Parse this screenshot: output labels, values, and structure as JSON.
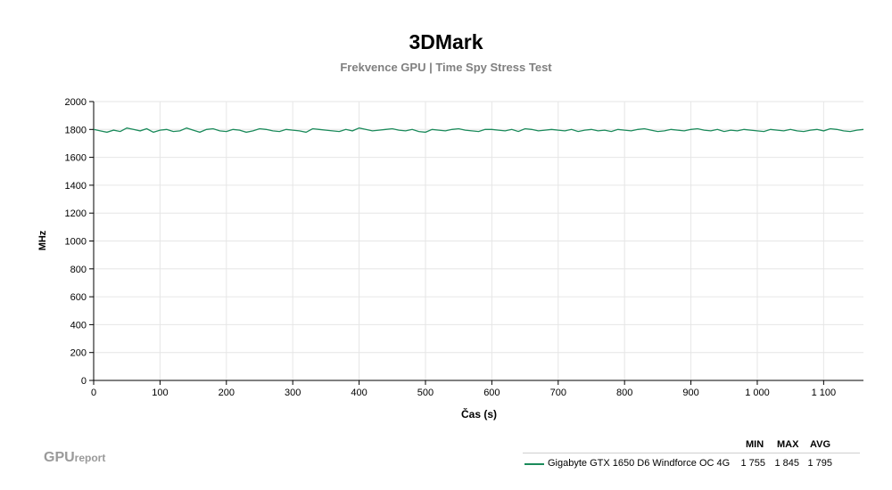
{
  "chart_data": {
    "type": "line",
    "title": "3DMark",
    "subtitle": "Frekvence GPU | Time Spy Stress Test",
    "xlabel": "Čas (s)",
    "ylabel": "MHz",
    "xlim": [
      0,
      1160
    ],
    "ylim": [
      0,
      2000
    ],
    "x_ticks": [
      0,
      100,
      200,
      300,
      400,
      500,
      600,
      700,
      800,
      900,
      1000,
      1100
    ],
    "x_tick_labels": [
      "0",
      "100",
      "200",
      "300",
      "400",
      "500",
      "600",
      "700",
      "800",
      "900",
      "1 000",
      "1 100"
    ],
    "y_ticks": [
      0,
      200,
      400,
      600,
      800,
      1000,
      1200,
      1400,
      1600,
      1800,
      2000
    ],
    "grid": true,
    "series": [
      {
        "name": "Gigabyte GTX 1650 D6 Windforce OC 4G",
        "color": "#1a8a5a",
        "x": [
          0,
          10,
          20,
          30,
          40,
          50,
          60,
          70,
          80,
          90,
          100,
          110,
          120,
          130,
          140,
          150,
          160,
          170,
          180,
          190,
          200,
          210,
          220,
          230,
          240,
          250,
          260,
          270,
          280,
          290,
          300,
          310,
          320,
          330,
          340,
          350,
          360,
          370,
          380,
          390,
          400,
          410,
          420,
          430,
          440,
          450,
          460,
          470,
          480,
          490,
          500,
          510,
          520,
          530,
          540,
          550,
          560,
          570,
          580,
          590,
          600,
          610,
          620,
          630,
          640,
          650,
          660,
          670,
          680,
          690,
          700,
          710,
          720,
          730,
          740,
          750,
          760,
          770,
          780,
          790,
          800,
          810,
          820,
          830,
          840,
          850,
          860,
          870,
          880,
          890,
          900,
          910,
          920,
          930,
          940,
          950,
          960,
          970,
          980,
          990,
          1000,
          1010,
          1020,
          1030,
          1040,
          1050,
          1060,
          1070,
          1080,
          1090,
          1100,
          1110,
          1120,
          1130,
          1140,
          1150,
          1160
        ],
        "y": [
          1800,
          1790,
          1780,
          1795,
          1785,
          1810,
          1800,
          1790,
          1805,
          1780,
          1795,
          1800,
          1785,
          1790,
          1810,
          1795,
          1780,
          1800,
          1805,
          1790,
          1785,
          1800,
          1795,
          1780,
          1790,
          1805,
          1800,
          1790,
          1785,
          1800,
          1795,
          1790,
          1780,
          1805,
          1800,
          1795,
          1790,
          1785,
          1800,
          1790,
          1810,
          1800,
          1790,
          1795,
          1800,
          1805,
          1795,
          1790,
          1800,
          1785,
          1780,
          1800,
          1795,
          1790,
          1800,
          1805,
          1795,
          1790,
          1785,
          1800,
          1800,
          1795,
          1790,
          1800,
          1785,
          1805,
          1800,
          1790,
          1795,
          1800,
          1795,
          1790,
          1800,
          1785,
          1795,
          1800,
          1790,
          1795,
          1785,
          1800,
          1795,
          1790,
          1800,
          1805,
          1795,
          1785,
          1790,
          1800,
          1795,
          1790,
          1800,
          1805,
          1795,
          1790,
          1800,
          1785,
          1795,
          1790,
          1800,
          1795,
          1790,
          1785,
          1800,
          1795,
          1790,
          1800,
          1790,
          1785,
          1795,
          1800,
          1790,
          1805,
          1800,
          1790,
          1785,
          1795,
          1800
        ]
      }
    ],
    "legend": {
      "position": "bottom-right",
      "headers": [
        "MIN",
        "MAX",
        "AVG"
      ],
      "entries": [
        {
          "name": "Gigabyte GTX 1650 D6 Windforce OC 4G",
          "min": "1 755",
          "max": "1 845",
          "avg": "1 795"
        }
      ]
    }
  },
  "branding": {
    "part1": "GPU",
    "part2": "report"
  }
}
